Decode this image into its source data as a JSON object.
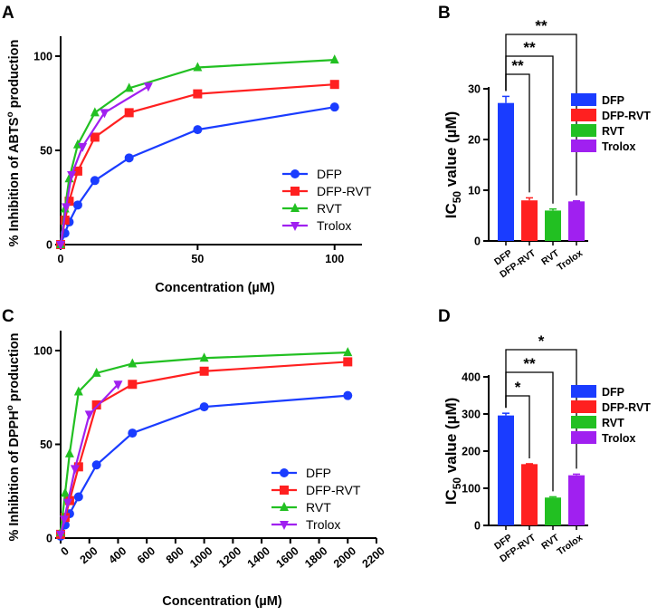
{
  "panels": {
    "A": {
      "letter": "A",
      "chart_data": {
        "type": "line",
        "xlabel": "Concentration (µM)",
        "ylabel_pre": "% Inhibition of ABTS",
        "ylabel_sup": "o",
        "ylabel_post": " production",
        "xlim": [
          0,
          110
        ],
        "ylim": [
          0,
          100
        ],
        "xticks": [
          0,
          50,
          100
        ],
        "yticks": [
          0,
          50,
          100
        ],
        "series": [
          {
            "name": "DFP",
            "color": "#1a3cff",
            "marker": "circle",
            "x": [
              0,
              1.56,
              3.125,
              6.25,
              12.5,
              25,
              50,
              100
            ],
            "y": [
              0,
              6,
              12,
              21,
              34,
              46,
              61,
              73
            ]
          },
          {
            "name": "DFP-RVT",
            "color": "#ff2020",
            "marker": "square",
            "x": [
              0,
              1.56,
              3.125,
              6.25,
              12.5,
              25,
              50,
              100
            ],
            "y": [
              0,
              13,
              23,
              39,
              57,
              70,
              80,
              85
            ]
          },
          {
            "name": "RVT",
            "color": "#22c022",
            "marker": "triangle-up",
            "x": [
              0,
              1.56,
              3.125,
              6.25,
              12.5,
              25,
              50,
              100
            ],
            "y": [
              0,
              19,
              35,
              53,
              70,
              83,
              94,
              98
            ]
          },
          {
            "name": "Trolox",
            "color": "#a020f0",
            "marker": "triangle-down",
            "x": [
              0,
              2,
              4,
              8,
              16,
              32
            ],
            "y": [
              0,
              20,
              37,
              52,
              70,
              84
            ]
          }
        ]
      }
    },
    "B": {
      "letter": "B",
      "chart_data": {
        "type": "bar",
        "ylabel_main": "IC",
        "ylabel_sub": "50",
        "ylabel_post": " value (µM)",
        "categories": [
          "DFP",
          "DFP-RVT",
          "RVT",
          "Trolox"
        ],
        "values": [
          27.2,
          8.0,
          6.0,
          7.8
        ],
        "errors": [
          1.3,
          0.5,
          0.3,
          0.1
        ],
        "colors": [
          "#1a3cff",
          "#ff2020",
          "#22c022",
          "#a020f0"
        ],
        "ylim": [
          0,
          30
        ],
        "yticks": [
          0,
          10,
          20,
          30
        ],
        "significance": [
          {
            "from": "DFP",
            "to": "DFP-RVT",
            "label": "**"
          },
          {
            "from": "DFP",
            "to": "RVT",
            "label": "**"
          },
          {
            "from": "DFP",
            "to": "Trolox",
            "label": "**"
          }
        ]
      }
    },
    "C": {
      "letter": "C",
      "chart_data": {
        "type": "line",
        "xlabel": "Concentration (µM)",
        "ylabel_pre": "% Inhibition of DPPH",
        "ylabel_sup": "o",
        "ylabel_post": " production",
        "xlim": [
          0,
          2200
        ],
        "ylim": [
          0,
          100
        ],
        "xticks": [
          0,
          200,
          400,
          600,
          800,
          1000,
          1200,
          1400,
          1600,
          1800,
          2000,
          2200
        ],
        "yticks": [
          0,
          50,
          100
        ],
        "series": [
          {
            "name": "DFP",
            "color": "#1a3cff",
            "marker": "circle",
            "x": [
              0,
              31.25,
              62.5,
              125,
              250,
              500,
              1000,
              2000
            ],
            "y": [
              1,
              7,
              13,
              22,
              39,
              56,
              70,
              76
            ]
          },
          {
            "name": "DFP-RVT",
            "color": "#ff2020",
            "marker": "square",
            "x": [
              0,
              31.25,
              62.5,
              125,
              250,
              500,
              1000,
              2000
            ],
            "y": [
              2,
              11,
              20,
              38,
              71,
              82,
              89,
              94
            ]
          },
          {
            "name": "RVT",
            "color": "#22c022",
            "marker": "triangle-up",
            "x": [
              0,
              31.25,
              62.5,
              125,
              250,
              500,
              1000,
              2000
            ],
            "y": [
              3,
              24,
              45,
              78,
              88,
              93,
              96,
              99
            ]
          },
          {
            "name": "Trolox",
            "color": "#a020f0",
            "marker": "triangle-down",
            "x": [
              0,
              25,
              50,
              100,
              200,
              400
            ],
            "y": [
              2,
              10,
              19,
              37,
              66,
              82
            ]
          }
        ]
      }
    },
    "D": {
      "letter": "D",
      "chart_data": {
        "type": "bar",
        "ylabel_main": "IC",
        "ylabel_sub": "50",
        "ylabel_post": " value (µM)",
        "categories": [
          "DFP",
          "DFP-RVT",
          "RVT",
          "Trolox"
        ],
        "values": [
          296,
          165,
          75,
          135
        ],
        "errors": [
          6,
          1,
          2,
          3
        ],
        "colors": [
          "#1a3cff",
          "#ff2020",
          "#22c022",
          "#a020f0"
        ],
        "ylim": [
          0,
          400
        ],
        "yticks": [
          0,
          100,
          200,
          300,
          400
        ],
        "significance": [
          {
            "from": "DFP",
            "to": "DFP-RVT",
            "label": "*"
          },
          {
            "from": "DFP",
            "to": "RVT",
            "label": "**"
          },
          {
            "from": "DFP",
            "to": "Trolox",
            "label": "*"
          }
        ]
      }
    }
  }
}
